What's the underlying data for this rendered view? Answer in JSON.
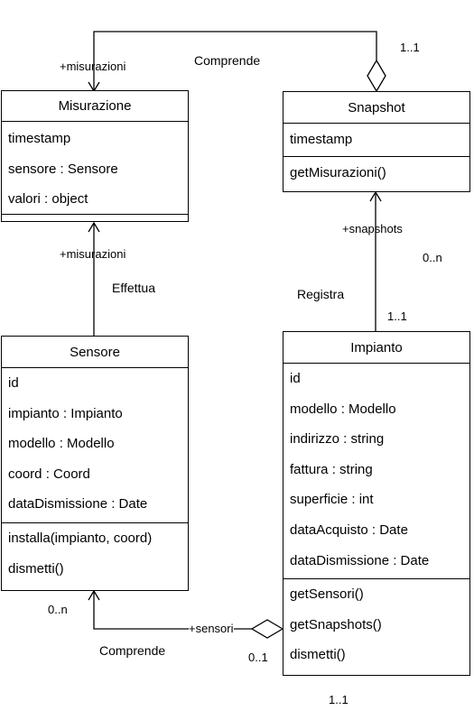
{
  "classes": {
    "misurazione": {
      "name": "Misurazione",
      "attributes": [
        "timestamp",
        "sensore : Sensore",
        "valori : object"
      ],
      "operations": []
    },
    "snapshot": {
      "name": "Snapshot",
      "attributes": [
        "timestamp"
      ],
      "operations": [
        "getMisurazioni()"
      ]
    },
    "sensore": {
      "name": "Sensore",
      "attributes": [
        "id",
        "impianto : Impianto",
        "modello : Modello",
        "coord : Coord",
        "dataDismissione : Date"
      ],
      "operations": [
        "installa(impianto, coord)",
        "dismetti()"
      ]
    },
    "impianto": {
      "name": "Impianto",
      "attributes": [
        "id",
        "modello : Modello",
        "indirizzo : string",
        "fattura : string",
        "superficie : int",
        "dataAcquisto : Date",
        "dataDismissione : Date"
      ],
      "operations": [
        "getSensori()",
        "getSnapshots()",
        "dismetti()"
      ]
    }
  },
  "associations": {
    "snapshot_misurazione": {
      "name": "Comprende",
      "role": "+misurazioni",
      "multiplicity": "1..1"
    },
    "sensore_misurazione": {
      "name": "Effettua",
      "role": "+misurazioni"
    },
    "impianto_snapshot": {
      "name": "Registra",
      "role": "+snapshots",
      "multiplicity_target": "0..n",
      "multiplicity_source": "1..1"
    },
    "impianto_sensore": {
      "name": "Comprende",
      "role": "+sensori",
      "multiplicity_target": "0..n",
      "multiplicity_source": "0..1",
      "multiplicity_extra": "1..1"
    }
  }
}
